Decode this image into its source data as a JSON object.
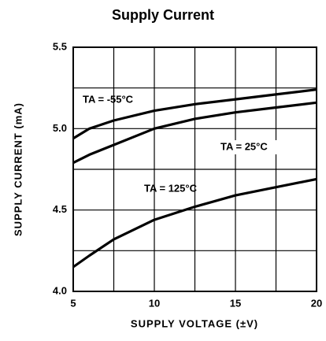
{
  "chart_data": {
    "type": "line",
    "title": "Supply Current",
    "xlabel": "SUPPLY VOLTAGE (±V)",
    "ylabel": "SUPPLY CURRENT (mA)",
    "xlim": [
      5,
      20
    ],
    "xticks": [
      5,
      10,
      15,
      20
    ],
    "ylim": [
      4.0,
      5.5
    ],
    "yticks": [
      {
        "value": 4.0,
        "label": "4.0"
      },
      4.5,
      {
        "value": 5.0,
        "label": "5.0"
      },
      5.5
    ],
    "x_minor_grid": [
      7.5,
      12.5,
      17.5
    ],
    "y_minor_grid": [
      4.25,
      4.75,
      5.25
    ],
    "grid": true,
    "x": [
      5,
      6,
      7.5,
      10,
      12.5,
      15,
      17.5,
      20
    ],
    "series": [
      {
        "name": "TA = -55°C",
        "color": "#000000",
        "values": [
          4.94,
          5.0,
          5.05,
          5.11,
          5.15,
          5.18,
          5.21,
          5.24
        ]
      },
      {
        "name": "TA = 25°C",
        "color": "#000000",
        "values": [
          4.79,
          4.84,
          4.9,
          5.0,
          5.06,
          5.1,
          5.13,
          5.16
        ]
      },
      {
        "name": "TA = 125°C",
        "color": "#000000",
        "values": [
          4.15,
          4.22,
          4.32,
          4.44,
          4.52,
          4.59,
          4.64,
          4.69
        ]
      }
    ]
  }
}
